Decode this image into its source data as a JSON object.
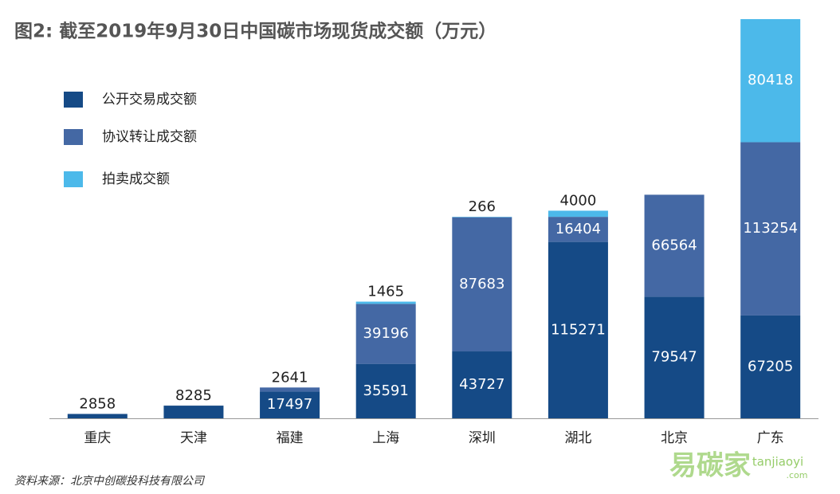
{
  "chart_data": {
    "type": "stacked-bar",
    "title": "图2: 截至2019年9月30日中国碳市场现货成交额（万元）",
    "categories": [
      "重庆",
      "天津",
      "福建",
      "上海",
      "深圳",
      "湖北",
      "北京",
      "广东"
    ],
    "series": [
      {
        "name": "公开交易成交额",
        "color": "#154a86",
        "values": [
          2858,
          8285,
          17497,
          35591,
          43727,
          115271,
          79547,
          67205
        ]
      },
      {
        "name": "协议转让成交额",
        "color": "#4468a4",
        "values": [
          null,
          null,
          2641,
          39196,
          87683,
          16404,
          66564,
          113254
        ]
      },
      {
        "name": "拍卖成交额",
        "color": "#4cb9ea",
        "values": [
          null,
          null,
          null,
          1465,
          266,
          4000,
          null,
          80418
        ]
      }
    ],
    "legend": "upper left",
    "source": "资料来源：北京中创碳投科技有限公司",
    "watermark": {
      "brand": "易碳家",
      "site": "tanjiaoyi",
      "domain": ".com"
    }
  }
}
